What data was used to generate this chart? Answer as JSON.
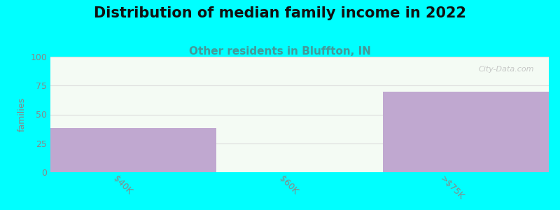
{
  "title": "Distribution of median family income in 2022",
  "subtitle": "Other residents in Bluffton, IN",
  "categories": [
    "$40K",
    "$60K",
    ">$75K"
  ],
  "values": [
    38,
    0,
    70
  ],
  "bar_color": "#c0a8d0",
  "background_color": "#00ffff",
  "plot_bg_top": "#f4fbf4",
  "plot_bg_bottom": "#e8f5e8",
  "ylabel": "families",
  "ylim": [
    0,
    100
  ],
  "yticks": [
    0,
    25,
    50,
    75,
    100
  ],
  "title_fontsize": 15,
  "subtitle_fontsize": 11,
  "subtitle_color": "#449999",
  "watermark": "City-Data.com",
  "tick_label_color": "#888888",
  "ylabel_color": "#888888"
}
